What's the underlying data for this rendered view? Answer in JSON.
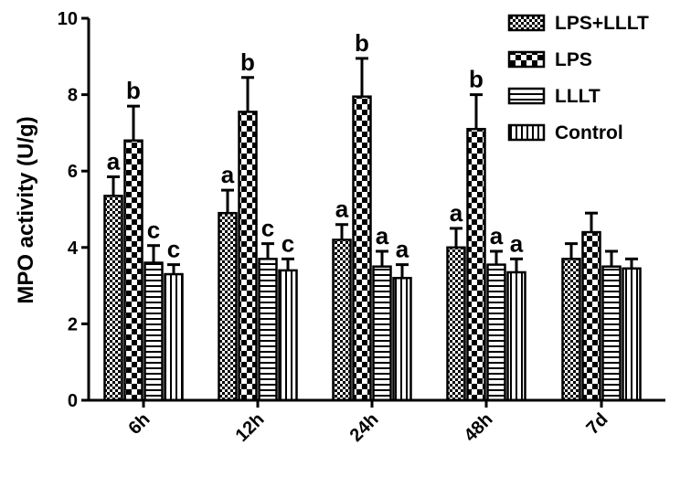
{
  "chart_data": {
    "type": "bar",
    "ylabel": "MPO activity (U/g)",
    "xlabel": "",
    "ylim": [
      0,
      10
    ],
    "yticks": [
      "0",
      "2",
      "4",
      "6",
      "8",
      "10"
    ],
    "categories": [
      "6h",
      "12h",
      "24h",
      "48h",
      "7d"
    ],
    "legend_position": "top-right",
    "series": [
      {
        "name": "LPS+LLLT",
        "pattern": "checker-fine",
        "values": [
          5.35,
          4.9,
          4.2,
          4.0,
          3.7
        ],
        "errors": [
          0.5,
          0.6,
          0.4,
          0.5,
          0.4
        ],
        "labels": [
          "a",
          "a",
          "a",
          "a",
          ""
        ]
      },
      {
        "name": "LPS",
        "pattern": "checker-large",
        "values": [
          6.8,
          7.55,
          7.95,
          7.1,
          4.4
        ],
        "errors": [
          0.9,
          0.9,
          1.0,
          0.9,
          0.5
        ],
        "labels": [
          "b",
          "b",
          "b",
          "b",
          ""
        ]
      },
      {
        "name": "LLLT",
        "pattern": "horizontal-lines",
        "values": [
          3.6,
          3.7,
          3.5,
          3.55,
          3.5
        ],
        "errors": [
          0.45,
          0.4,
          0.4,
          0.35,
          0.4
        ],
        "labels": [
          "c",
          "c",
          "a",
          "a",
          ""
        ]
      },
      {
        "name": "Control",
        "pattern": "vertical-lines",
        "values": [
          3.3,
          3.4,
          3.2,
          3.35,
          3.45
        ],
        "errors": [
          0.25,
          0.3,
          0.35,
          0.35,
          0.25
        ],
        "labels": [
          "c",
          "c",
          "a",
          "a",
          ""
        ]
      }
    ]
  }
}
